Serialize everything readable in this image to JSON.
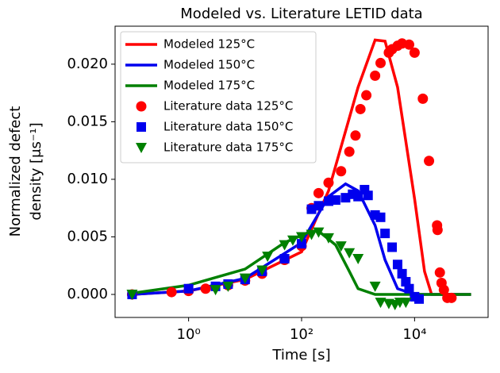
{
  "chart_data": {
    "type": "line-scatter",
    "title": "Modeled vs. Literature LETID data",
    "xlabel": "Time [s]",
    "ylabel": [
      "Normalized defect",
      "density [μs⁻¹]"
    ],
    "xscale": "log",
    "xlim": [
      0.05,
      200000
    ],
    "ylim": [
      -0.002,
      0.0233
    ],
    "xticks": [
      {
        "value": 1,
        "label": "10⁰"
      },
      {
        "value": 100,
        "label": "10²"
      },
      {
        "value": 10000,
        "label": "10⁴"
      }
    ],
    "yticks": [
      {
        "value": 0,
        "label": "0.000"
      },
      {
        "value": 0.005,
        "label": "0.005"
      },
      {
        "value": 0.01,
        "label": "0.010"
      },
      {
        "value": 0.015,
        "label": "0.015"
      },
      {
        "value": 0.02,
        "label": "0.020"
      }
    ],
    "legend": "upper left",
    "series": [
      {
        "name": "Modeled 125°C",
        "color": "#ff0000",
        "style": "line",
        "x": [
          0.1,
          1,
          10,
          100,
          300,
          1000,
          2000,
          3000,
          5000,
          10000,
          15000,
          20000,
          100000
        ],
        "values": [
          0,
          0.0003,
          0.0013,
          0.0037,
          0.009,
          0.018,
          0.0221,
          0.022,
          0.018,
          0.0083,
          0.002,
          0,
          0
        ]
      },
      {
        "name": "Modeled 150°C",
        "color": "#0000ee",
        "style": "line",
        "x": [
          0.1,
          1,
          10,
          100,
          300,
          600,
          1000,
          2000,
          3000,
          5000,
          10000,
          100000
        ],
        "values": [
          0,
          0.0003,
          0.0014,
          0.0045,
          0.0085,
          0.0096,
          0.009,
          0.006,
          0.003,
          0.0005,
          0,
          0
        ]
      },
      {
        "name": "Modeled 175°C",
        "color": "#008000",
        "style": "line",
        "x": [
          0.1,
          1,
          10,
          50,
          150,
          200,
          400,
          700,
          1000,
          2000,
          100000
        ],
        "values": [
          0.0001,
          0.0008,
          0.0022,
          0.0045,
          0.0055,
          0.0055,
          0.0043,
          0.002,
          0.0005,
          0,
          0
        ]
      },
      {
        "name": "Literature data  125°C",
        "color": "#ff0000",
        "style": "scatter",
        "marker": "circle",
        "x": [
          0.1,
          0.5,
          1,
          2,
          5,
          10,
          20,
          50,
          100,
          150,
          200,
          300,
          500,
          700,
          900,
          1100,
          1400,
          2000,
          2500,
          3500,
          4000,
          5000,
          6000,
          8000,
          10000,
          14000,
          18000,
          25000,
          25500,
          28000,
          30000,
          33000,
          38000,
          45000
        ],
        "values": [
          0,
          0.0002,
          0.0003,
          0.0005,
          0.0008,
          0.0012,
          0.0018,
          0.003,
          0.0042,
          0.0075,
          0.0088,
          0.0097,
          0.0107,
          0.0124,
          0.0138,
          0.0161,
          0.0173,
          0.019,
          0.0201,
          0.021,
          0.0213,
          0.0216,
          0.0218,
          0.0217,
          0.021,
          0.017,
          0.0116,
          0.006,
          0.0056,
          0.0019,
          0.001,
          0.0004,
          -0.0003,
          -0.0003
        ]
      },
      {
        "name": "Literature data  150°C",
        "color": "#0000ee",
        "style": "scatter",
        "marker": "square",
        "x": [
          0.1,
          1,
          3,
          5,
          10,
          20,
          50,
          100,
          150,
          200,
          300,
          400,
          600,
          800,
          1000,
          1300,
          1500,
          2000,
          2500,
          3000,
          4000,
          5000,
          6000,
          7000,
          8000,
          10000,
          12000
        ],
        "values": [
          0,
          0.0005,
          0.0007,
          0.0009,
          0.0013,
          0.002,
          0.0031,
          0.0044,
          0.0074,
          0.0077,
          0.0081,
          0.0082,
          0.0084,
          0.0087,
          0.0085,
          0.0091,
          0.0086,
          0.0069,
          0.0067,
          0.0053,
          0.0041,
          0.0026,
          0.0018,
          0.0011,
          0.0005,
          -0.0002,
          -0.0004
        ]
      },
      {
        "name": "Literature data  175°C",
        "color": "#008000",
        "style": "scatter",
        "marker": "triangle-down",
        "x": [
          0.1,
          3,
          5,
          10,
          20,
          25,
          50,
          70,
          100,
          150,
          200,
          300,
          500,
          700,
          1000,
          2000,
          2500,
          3500,
          4500,
          5500,
          7000
        ],
        "values": [
          0,
          0.0004,
          0.0007,
          0.0014,
          0.0021,
          0.0033,
          0.0043,
          0.0047,
          0.005,
          0.0052,
          0.0054,
          0.0049,
          0.0042,
          0.0036,
          0.0031,
          0.0007,
          -0.0007,
          -0.0008,
          -0.0009,
          -0.0007,
          -0.0007
        ]
      }
    ]
  }
}
